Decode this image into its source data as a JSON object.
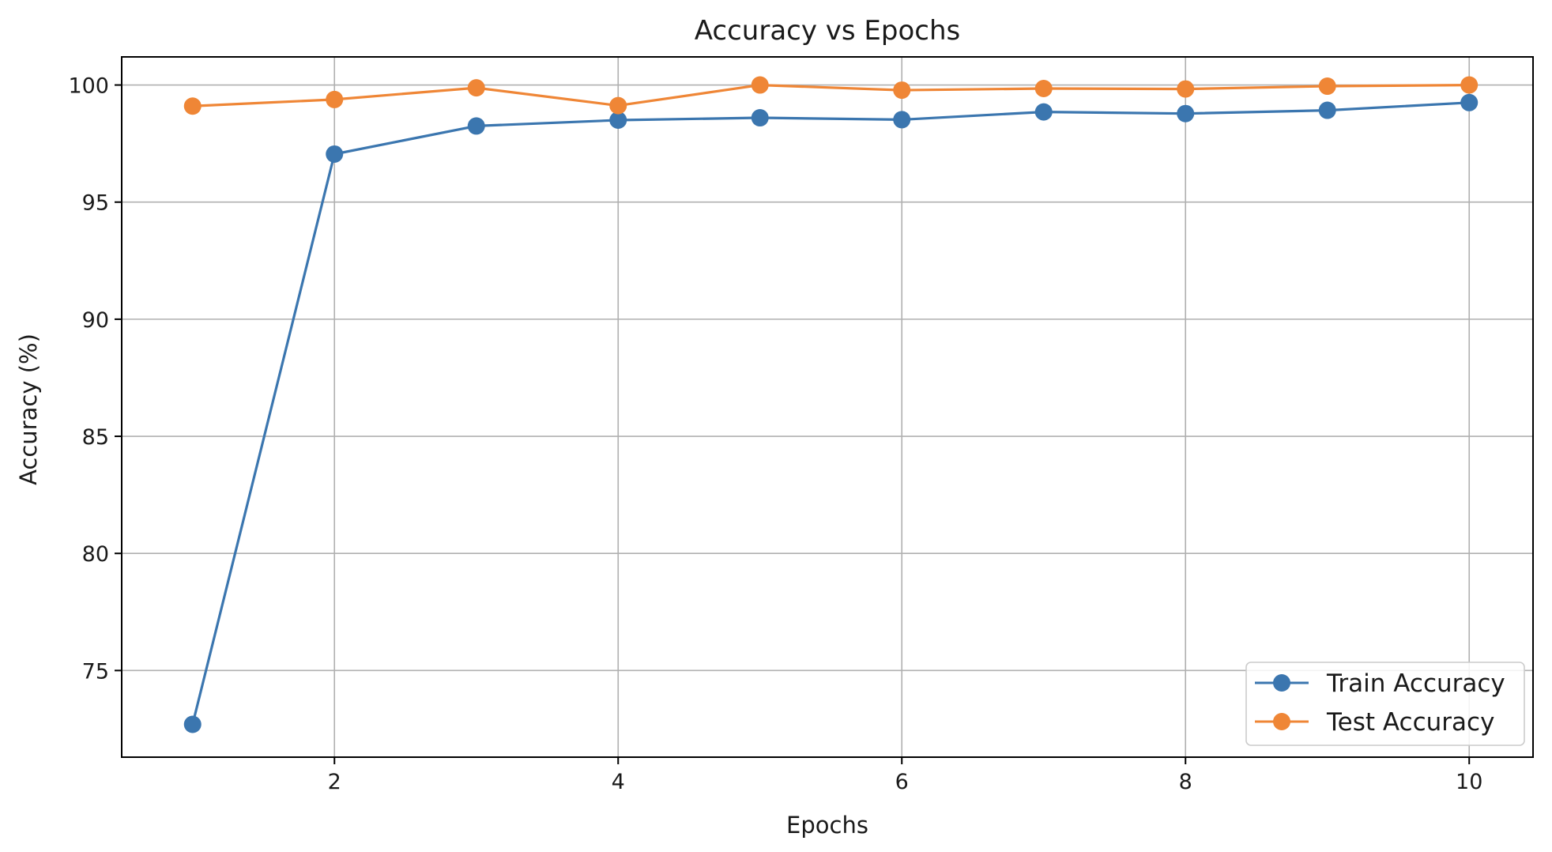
{
  "chart_data": {
    "type": "line",
    "title": "Accuracy vs Epochs",
    "xlabel": "Epochs",
    "ylabel": "Accuracy (%)",
    "xlim": [
      0.5,
      10.45
    ],
    "ylim": [
      71.3,
      101.2
    ],
    "xticks": [
      2,
      4,
      6,
      8,
      10
    ],
    "yticks": [
      75,
      80,
      85,
      90,
      95,
      100
    ],
    "grid": true,
    "legend_position": "lower-right",
    "x": [
      1,
      2,
      3,
      4,
      5,
      6,
      7,
      8,
      9,
      10
    ],
    "series": [
      {
        "name": "Train Accuracy",
        "color": "#3b76af",
        "marker": "circle",
        "values": [
          72.7,
          97.05,
          98.25,
          98.5,
          98.6,
          98.52,
          98.85,
          98.78,
          98.92,
          99.25
        ]
      },
      {
        "name": "Test Accuracy",
        "color": "#ef8636",
        "marker": "circle",
        "values": [
          99.1,
          99.38,
          99.88,
          99.12,
          100.0,
          99.78,
          99.85,
          99.83,
          99.95,
          100.0
        ]
      }
    ]
  }
}
